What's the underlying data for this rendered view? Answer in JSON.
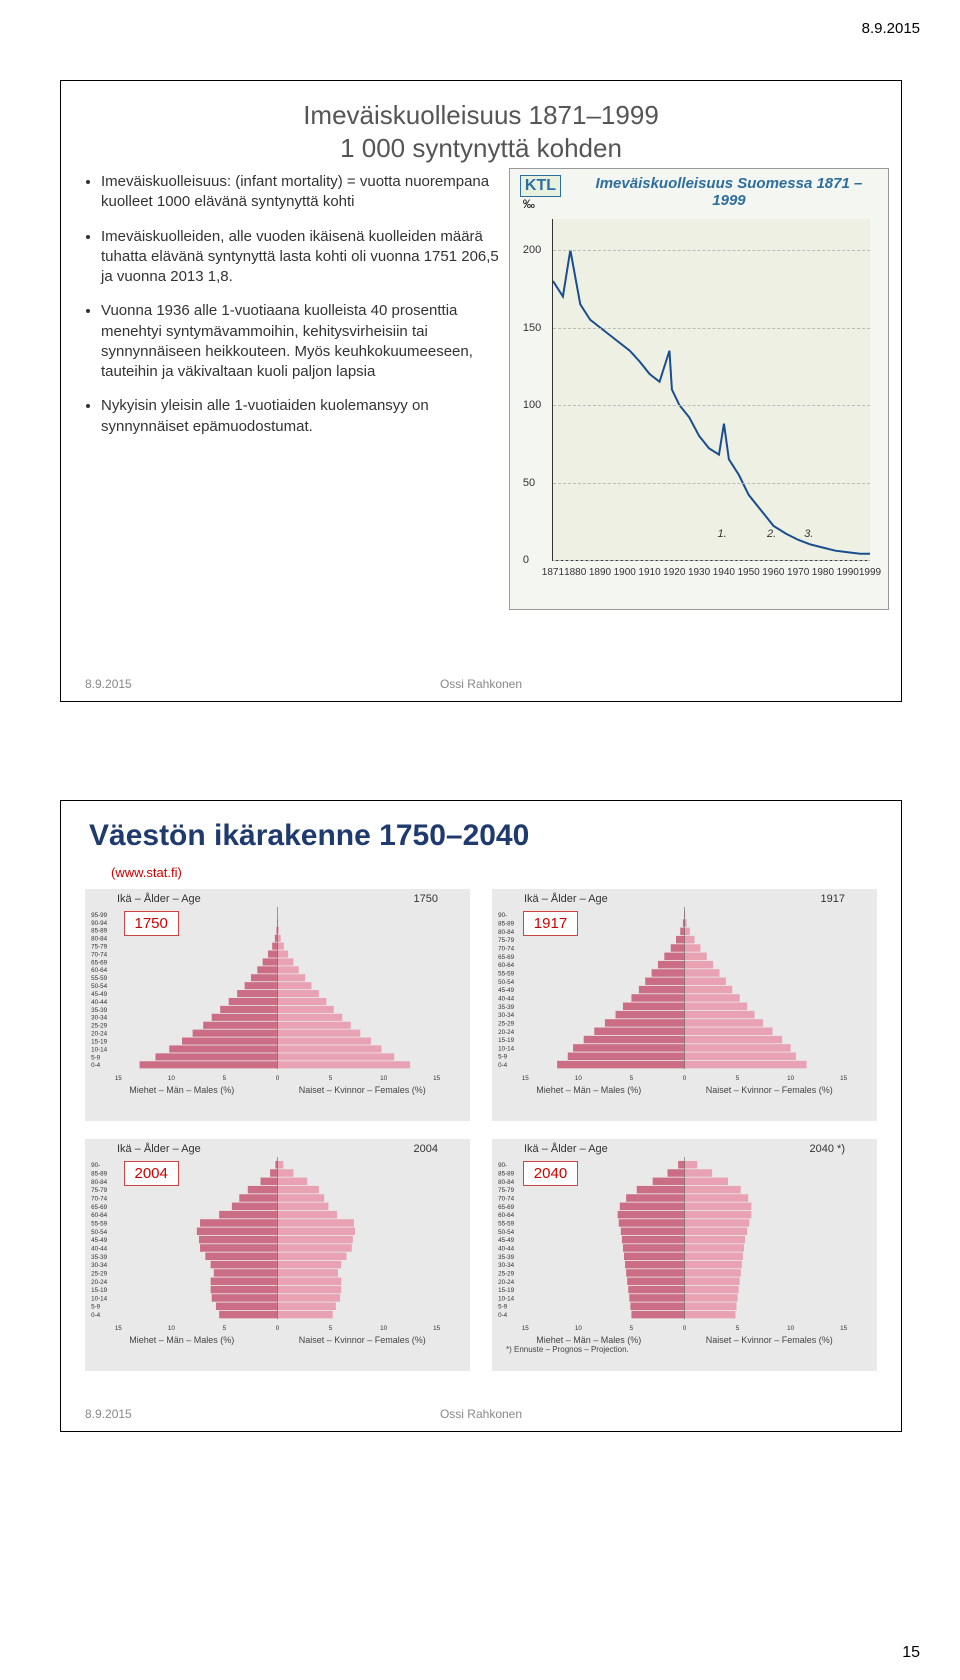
{
  "header_date": "8.9.2015",
  "page_number": "15",
  "slide1": {
    "title_line1": "Imeväiskuolleisuus 1871–1999",
    "title_line2": "1 000 syntynyttä kohden",
    "bullets": [
      "Imeväiskuolleisuus: (infant mortality) = vuotta nuorempana kuolleet 1000 elävänä syntynyttä kohti",
      "Imeväiskuolleiden, alle vuoden ikäisenä kuolleiden määrä tuhatta elävänä syntynyttä lasta kohti oli vuonna 1751 206,5 ja vuonna 2013  1,8.",
      "Vuonna 1936 alle 1-vuotiaana kuolleista 40 prosenttia menehtyi syntymävammoihin, kehitysvirheisiin tai synnynnäiseen heikkouteen. Myös keuhkokuumeeseen, tauteihin ja väkivaltaan kuoli paljon lapsia",
      "Nykyisin yleisin alle 1-vuotiaiden kuolemansyy on synnynnäiset epämuodostumat."
    ],
    "footer_left": "8.9.2015",
    "footer_center": "Ossi Rahkonen",
    "chart": {
      "logo": "KTL",
      "title": "Imeväiskuolleisuus Suomessa 1871 – 1999",
      "y_unit": "‰",
      "y_ticks": [
        0,
        50,
        100,
        150,
        200
      ],
      "ylim": [
        0,
        220
      ],
      "x_ticks": [
        1871,
        1880,
        1890,
        1900,
        1910,
        1920,
        1930,
        1940,
        1950,
        1960,
        1970,
        1980,
        1990,
        1999
      ],
      "xlim": [
        1871,
        1999
      ],
      "markers": [
        "1.",
        "2.",
        "3."
      ],
      "marker_years": [
        1940,
        1960,
        1975
      ],
      "line_color": "#1a4d8f",
      "bg_color": "#eef0e4",
      "series": [
        [
          1871,
          180
        ],
        [
          1875,
          170
        ],
        [
          1878,
          200
        ],
        [
          1882,
          165
        ],
        [
          1886,
          155
        ],
        [
          1890,
          150
        ],
        [
          1894,
          145
        ],
        [
          1898,
          140
        ],
        [
          1902,
          135
        ],
        [
          1906,
          128
        ],
        [
          1910,
          120
        ],
        [
          1914,
          115
        ],
        [
          1918,
          135
        ],
        [
          1919,
          110
        ],
        [
          1922,
          100
        ],
        [
          1926,
          92
        ],
        [
          1930,
          80
        ],
        [
          1934,
          72
        ],
        [
          1938,
          68
        ],
        [
          1940,
          88
        ],
        [
          1942,
          65
        ],
        [
          1946,
          55
        ],
        [
          1950,
          42
        ],
        [
          1955,
          32
        ],
        [
          1960,
          22
        ],
        [
          1965,
          17
        ],
        [
          1970,
          13
        ],
        [
          1975,
          10
        ],
        [
          1980,
          8
        ],
        [
          1985,
          6
        ],
        [
          1990,
          5
        ],
        [
          1995,
          4
        ],
        [
          1999,
          4
        ]
      ]
    }
  },
  "slide2": {
    "title": "Väestön ikärakenne 1750–2040",
    "source_link": "(www.stat.fi)",
    "age_label": "Ikä – Ålder – Age",
    "males_label": "Miehet – Män – Males (%)",
    "females_label": "Naiset – Kvinnor – Females (%)",
    "males_label_short": "Miehet – Män – Males (%)",
    "females_label_short": "Naiset – Kvinnor – Females (%)",
    "prognosis_note": "*) Ennuste – Prognos – Projection.",
    "age_groups_coarse": [
      "0-4",
      "5-9",
      "10-14",
      "15-19",
      "20-24",
      "25-29",
      "30-34",
      "35-39",
      "40-44",
      "45-49",
      "50-54",
      "55-59",
      "60-64",
      "65-69",
      "70-74",
      "75-79",
      "80-84",
      "85-89",
      "90-94",
      "95-99"
    ],
    "age_groups_fine": [
      "0-4",
      "5-9",
      "10-14",
      "15-19",
      "20-24",
      "25-29",
      "30-34",
      "35-39",
      "40-44",
      "45-49",
      "50-54",
      "55-59",
      "60-64",
      "65-69",
      "70-74",
      "75-79",
      "80-84",
      "85-89",
      "90-"
    ],
    "x_ticks_pct": [
      15,
      10,
      5,
      0,
      5,
      10,
      15
    ],
    "panels": [
      {
        "year": "1750",
        "males": [
          13.0,
          11.5,
          10.2,
          9.0,
          8.0,
          7.0,
          6.2,
          5.4,
          4.6,
          3.8,
          3.1,
          2.5,
          1.9,
          1.4,
          0.9,
          0.5,
          0.25,
          0.1,
          0.03,
          0.0
        ],
        "females": [
          12.5,
          11.0,
          9.8,
          8.8,
          7.8,
          6.9,
          6.1,
          5.3,
          4.6,
          3.9,
          3.2,
          2.6,
          2.0,
          1.5,
          1.0,
          0.6,
          0.3,
          0.12,
          0.04,
          0.0
        ],
        "xmax": 15
      },
      {
        "year": "1917",
        "males": [
          12.0,
          11.0,
          10.5,
          9.5,
          8.5,
          7.5,
          6.5,
          5.8,
          5.0,
          4.3,
          3.7,
          3.1,
          2.5,
          1.9,
          1.3,
          0.8,
          0.4,
          0.15,
          0.04
        ],
        "females": [
          11.5,
          10.5,
          10.0,
          9.2,
          8.3,
          7.4,
          6.6,
          5.9,
          5.2,
          4.5,
          3.9,
          3.3,
          2.7,
          2.1,
          1.5,
          0.95,
          0.5,
          0.2,
          0.06
        ],
        "xmax": 15
      },
      {
        "year": "2004",
        "males": [
          5.5,
          5.8,
          6.2,
          6.3,
          6.3,
          6.0,
          6.3,
          6.8,
          7.3,
          7.4,
          7.6,
          7.3,
          5.5,
          4.3,
          3.6,
          2.8,
          1.6,
          0.7,
          0.2
        ],
        "females": [
          5.2,
          5.5,
          5.9,
          6.0,
          6.0,
          5.7,
          6.0,
          6.5,
          7.0,
          7.1,
          7.3,
          7.2,
          5.6,
          4.8,
          4.4,
          3.9,
          2.8,
          1.5,
          0.55
        ],
        "xmax": 15
      },
      {
        "year": "2040",
        "year_suffix": " *)",
        "males": [
          5.0,
          5.1,
          5.2,
          5.3,
          5.4,
          5.5,
          5.6,
          5.7,
          5.8,
          5.9,
          6.0,
          6.2,
          6.3,
          6.1,
          5.5,
          4.5,
          3.0,
          1.6,
          0.6
        ],
        "females": [
          4.8,
          4.9,
          5.0,
          5.1,
          5.2,
          5.3,
          5.4,
          5.5,
          5.6,
          5.7,
          5.9,
          6.1,
          6.3,
          6.3,
          6.0,
          5.3,
          4.1,
          2.6,
          1.2
        ],
        "xmax": 15
      }
    ],
    "bar_male_color": "#cc6d86",
    "bar_female_color": "#e8a2b4",
    "panel_bg": "#e9e9e9",
    "footer_left": "8.9.2015",
    "footer_center": "Ossi Rahkonen"
  }
}
